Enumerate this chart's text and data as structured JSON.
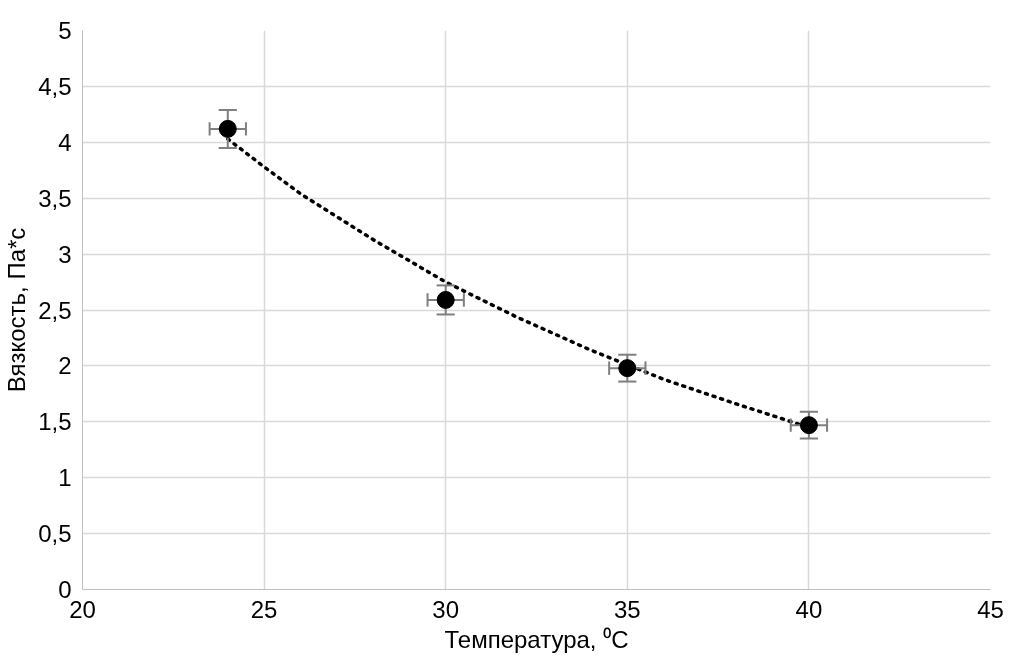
{
  "chart_data": {
    "type": "scatter",
    "xlabel": "Температура, ⁰C",
    "ylabel": "Вязкость, Па*с",
    "xlim": [
      20,
      45
    ],
    "xticks": [
      20,
      25,
      30,
      35,
      40,
      45
    ],
    "ylim": [
      0,
      5
    ],
    "yticks": [
      0,
      {
        "value": 0.5,
        "label": "0,5"
      },
      1,
      {
        "value": 1.5,
        "label": "1,5"
      },
      2,
      {
        "value": 2.5,
        "label": "2,5"
      },
      3,
      {
        "value": 3.5,
        "label": "3,5"
      },
      4,
      {
        "value": 4.5,
        "label": "4,5"
      },
      5
    ],
    "grid": true,
    "marker": "circle",
    "series": [
      {
        "color": "#000000",
        "x": [
          24,
          30,
          35,
          40
        ],
        "values": [
          4.12,
          2.59,
          1.98,
          1.47
        ],
        "errors": [
          0.17,
          0.13,
          0.12,
          0.12
        ],
        "xerrors": [
          0.5,
          0.5,
          0.5,
          0.5
        ]
      },
      {
        "type": "line",
        "color": "#000000",
        "line_style": "dotted",
        "marker": "none",
        "x": [
          24,
          25,
          26,
          28,
          30,
          32,
          34,
          36,
          38,
          40
        ],
        "values": [
          4.03,
          3.78,
          3.54,
          3.13,
          2.75,
          2.43,
          2.14,
          1.88,
          1.66,
          1.45
        ]
      }
    ]
  }
}
